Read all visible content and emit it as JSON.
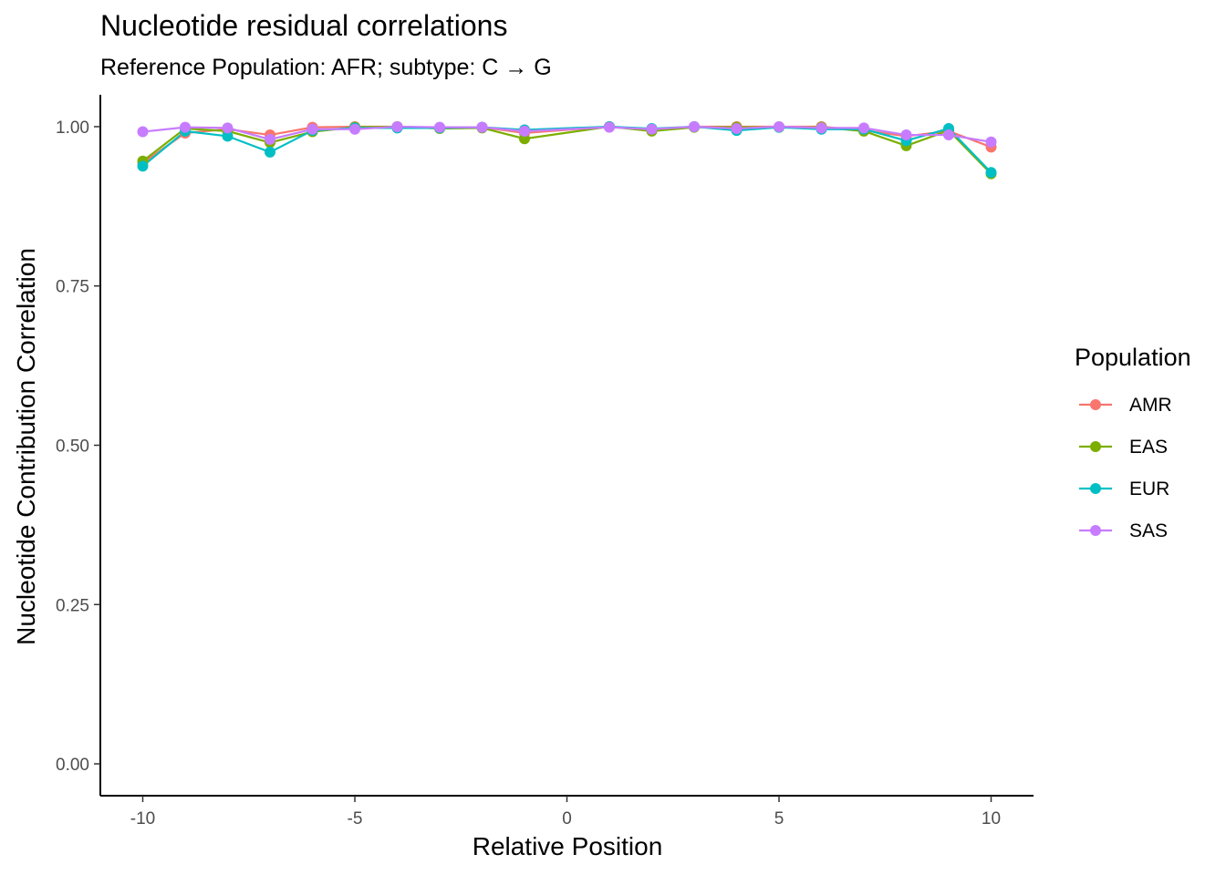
{
  "chart_data": {
    "type": "line",
    "title": "Nucleotide residual correlations",
    "subtitle": "Reference Population: AFR; subtype: C → G",
    "xlabel": "Relative Position",
    "ylabel": "Nucleotide Contribution Correlation",
    "xlim": [
      -11,
      11
    ],
    "ylim": [
      -0.05,
      1.05
    ],
    "x_ticks": [
      -10,
      -5,
      0,
      5,
      10
    ],
    "x_tick_labels": [
      "-10",
      "-5",
      "0",
      "5",
      "10"
    ],
    "y_ticks": [
      0,
      0.25,
      0.5,
      0.75,
      1.0
    ],
    "y_tick_labels": [
      "0.00",
      "0.25",
      "0.50",
      "0.75",
      "1.00"
    ],
    "grid": false,
    "legend_title": "Population",
    "legend_position": "right",
    "x": [
      -10,
      -9,
      -8,
      -7,
      -6,
      -5,
      -4,
      -3,
      -2,
      -1,
      1,
      2,
      3,
      4,
      5,
      6,
      7,
      8,
      9,
      10
    ],
    "series": [
      {
        "name": "AMR",
        "color": "#F8766D",
        "values": [
          0.943,
          0.99,
          0.996,
          0.987,
          0.999,
          1.0,
          1.0,
          0.998,
          0.999,
          0.99,
          1.0,
          0.995,
          1.0,
          1.0,
          1.0,
          1.0,
          0.994,
          0.985,
          0.993,
          0.968
        ]
      },
      {
        "name": "EAS",
        "color": "#7CAE00",
        "values": [
          0.946,
          0.997,
          0.993,
          0.975,
          0.992,
          0.999,
          1.0,
          0.997,
          0.998,
          0.981,
          1.0,
          0.993,
          0.999,
          0.999,
          0.999,
          0.999,
          0.993,
          0.97,
          0.994,
          0.926
        ]
      },
      {
        "name": "EUR",
        "color": "#00BFC4",
        "values": [
          0.938,
          0.993,
          0.985,
          0.96,
          0.994,
          0.998,
          0.998,
          0.998,
          0.999,
          0.995,
          1.0,
          0.997,
          1.0,
          0.994,
          0.999,
          0.996,
          0.996,
          0.978,
          0.997,
          0.928
        ]
      },
      {
        "name": "SAS",
        "color": "#C77CFF",
        "values": [
          0.992,
          0.999,
          0.998,
          0.98,
          0.996,
          0.996,
          1.0,
          0.999,
          0.999,
          0.993,
          0.999,
          0.996,
          1.0,
          0.997,
          1.0,
          0.998,
          0.998,
          0.987,
          0.987,
          0.976
        ]
      }
    ]
  }
}
